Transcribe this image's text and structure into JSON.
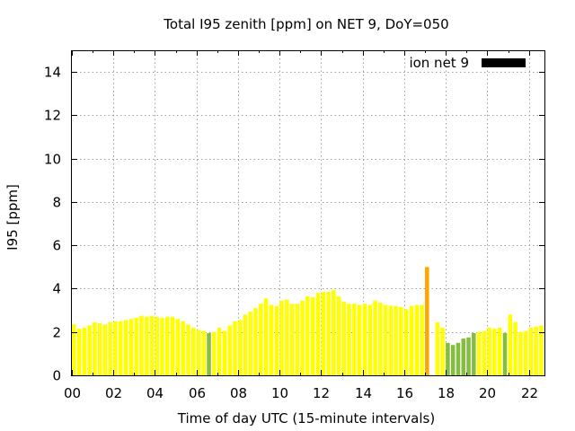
{
  "chart_data": {
    "type": "bar",
    "title": "Total I95 zenith [ppm] on NET 9, DoY=050",
    "xlabel": "Time of day UTC (15-minute intervals)",
    "ylabel": "I95 [ppm]",
    "xlim": [
      0,
      22.75
    ],
    "ylim": [
      0,
      15
    ],
    "xticks": [
      "00",
      "02",
      "04",
      "06",
      "08",
      "10",
      "12",
      "14",
      "16",
      "18",
      "20",
      "22"
    ],
    "yticks": [
      "0",
      "2",
      "4",
      "6",
      "8",
      "10",
      "12",
      "14"
    ],
    "grid": true,
    "legend": {
      "label": "ion net 9",
      "color": "#000000",
      "position": "top-right"
    },
    "colors": {
      "yellow": "#ffff00",
      "green": "#84bd3f",
      "orange": "#ffa500"
    },
    "bars": [
      {
        "x": 0.0,
        "y": 2.35,
        "c": "yellow"
      },
      {
        "x": 0.25,
        "y": 2.15,
        "c": "yellow"
      },
      {
        "x": 0.5,
        "y": 2.2,
        "c": "yellow"
      },
      {
        "x": 0.75,
        "y": 2.3,
        "c": "yellow"
      },
      {
        "x": 1.0,
        "y": 2.45,
        "c": "yellow"
      },
      {
        "x": 1.25,
        "y": 2.4,
        "c": "yellow"
      },
      {
        "x": 1.5,
        "y": 2.35,
        "c": "yellow"
      },
      {
        "x": 1.75,
        "y": 2.45,
        "c": "yellow"
      },
      {
        "x": 2.0,
        "y": 2.5,
        "c": "yellow"
      },
      {
        "x": 2.25,
        "y": 2.5,
        "c": "yellow"
      },
      {
        "x": 2.5,
        "y": 2.55,
        "c": "yellow"
      },
      {
        "x": 2.75,
        "y": 2.6,
        "c": "yellow"
      },
      {
        "x": 3.0,
        "y": 2.65,
        "c": "yellow"
      },
      {
        "x": 3.25,
        "y": 2.75,
        "c": "yellow"
      },
      {
        "x": 3.5,
        "y": 2.7,
        "c": "yellow"
      },
      {
        "x": 3.75,
        "y": 2.75,
        "c": "yellow"
      },
      {
        "x": 4.0,
        "y": 2.7,
        "c": "yellow"
      },
      {
        "x": 4.25,
        "y": 2.65,
        "c": "yellow"
      },
      {
        "x": 4.5,
        "y": 2.7,
        "c": "yellow"
      },
      {
        "x": 4.75,
        "y": 2.7,
        "c": "yellow"
      },
      {
        "x": 5.0,
        "y": 2.6,
        "c": "yellow"
      },
      {
        "x": 5.25,
        "y": 2.5,
        "c": "yellow"
      },
      {
        "x": 5.5,
        "y": 2.35,
        "c": "yellow"
      },
      {
        "x": 5.75,
        "y": 2.2,
        "c": "yellow"
      },
      {
        "x": 6.0,
        "y": 2.1,
        "c": "yellow"
      },
      {
        "x": 6.25,
        "y": 2.05,
        "c": "yellow"
      },
      {
        "x": 6.5,
        "y": 1.95,
        "c": "green"
      },
      {
        "x": 6.75,
        "y": 2.0,
        "c": "yellow"
      },
      {
        "x": 7.0,
        "y": 2.2,
        "c": "yellow"
      },
      {
        "x": 7.25,
        "y": 2.05,
        "c": "yellow"
      },
      {
        "x": 7.5,
        "y": 2.3,
        "c": "yellow"
      },
      {
        "x": 7.75,
        "y": 2.5,
        "c": "yellow"
      },
      {
        "x": 8.0,
        "y": 2.55,
        "c": "yellow"
      },
      {
        "x": 8.25,
        "y": 2.8,
        "c": "yellow"
      },
      {
        "x": 8.5,
        "y": 2.95,
        "c": "yellow"
      },
      {
        "x": 8.75,
        "y": 3.1,
        "c": "yellow"
      },
      {
        "x": 9.0,
        "y": 3.3,
        "c": "yellow"
      },
      {
        "x": 9.25,
        "y": 3.55,
        "c": "yellow"
      },
      {
        "x": 9.5,
        "y": 3.25,
        "c": "yellow"
      },
      {
        "x": 9.75,
        "y": 3.2,
        "c": "yellow"
      },
      {
        "x": 10.0,
        "y": 3.45,
        "c": "yellow"
      },
      {
        "x": 10.25,
        "y": 3.5,
        "c": "yellow"
      },
      {
        "x": 10.5,
        "y": 3.3,
        "c": "yellow"
      },
      {
        "x": 10.75,
        "y": 3.3,
        "c": "yellow"
      },
      {
        "x": 11.0,
        "y": 3.45,
        "c": "yellow"
      },
      {
        "x": 11.25,
        "y": 3.65,
        "c": "yellow"
      },
      {
        "x": 11.5,
        "y": 3.6,
        "c": "yellow"
      },
      {
        "x": 11.75,
        "y": 3.8,
        "c": "yellow"
      },
      {
        "x": 12.0,
        "y": 3.85,
        "c": "yellow"
      },
      {
        "x": 12.25,
        "y": 3.85,
        "c": "yellow"
      },
      {
        "x": 12.5,
        "y": 3.95,
        "c": "yellow"
      },
      {
        "x": 12.75,
        "y": 3.65,
        "c": "yellow"
      },
      {
        "x": 13.0,
        "y": 3.4,
        "c": "yellow"
      },
      {
        "x": 13.25,
        "y": 3.3,
        "c": "yellow"
      },
      {
        "x": 13.5,
        "y": 3.3,
        "c": "yellow"
      },
      {
        "x": 13.75,
        "y": 3.25,
        "c": "yellow"
      },
      {
        "x": 14.0,
        "y": 3.3,
        "c": "yellow"
      },
      {
        "x": 14.25,
        "y": 3.25,
        "c": "yellow"
      },
      {
        "x": 14.5,
        "y": 3.45,
        "c": "yellow"
      },
      {
        "x": 14.75,
        "y": 3.35,
        "c": "yellow"
      },
      {
        "x": 15.0,
        "y": 3.25,
        "c": "yellow"
      },
      {
        "x": 15.25,
        "y": 3.2,
        "c": "yellow"
      },
      {
        "x": 15.5,
        "y": 3.2,
        "c": "yellow"
      },
      {
        "x": 15.75,
        "y": 3.15,
        "c": "yellow"
      },
      {
        "x": 16.0,
        "y": 3.05,
        "c": "yellow"
      },
      {
        "x": 16.25,
        "y": 3.2,
        "c": "yellow"
      },
      {
        "x": 16.5,
        "y": 3.25,
        "c": "yellow"
      },
      {
        "x": 16.75,
        "y": 3.25,
        "c": "yellow"
      },
      {
        "x": 17.0,
        "y": 5.0,
        "c": "orange"
      },
      {
        "x": 17.5,
        "y": 2.45,
        "c": "yellow"
      },
      {
        "x": 17.75,
        "y": 2.2,
        "c": "yellow"
      },
      {
        "x": 18.0,
        "y": 1.5,
        "c": "green"
      },
      {
        "x": 18.25,
        "y": 1.4,
        "c": "green"
      },
      {
        "x": 18.5,
        "y": 1.5,
        "c": "green"
      },
      {
        "x": 18.75,
        "y": 1.7,
        "c": "green"
      },
      {
        "x": 19.0,
        "y": 1.75,
        "c": "green"
      },
      {
        "x": 19.25,
        "y": 1.95,
        "c": "green"
      },
      {
        "x": 19.5,
        "y": 2.0,
        "c": "yellow"
      },
      {
        "x": 19.75,
        "y": 2.05,
        "c": "yellow"
      },
      {
        "x": 20.0,
        "y": 2.2,
        "c": "yellow"
      },
      {
        "x": 20.25,
        "y": 2.15,
        "c": "yellow"
      },
      {
        "x": 20.5,
        "y": 2.2,
        "c": "yellow"
      },
      {
        "x": 20.75,
        "y": 1.95,
        "c": "green"
      },
      {
        "x": 21.0,
        "y": 2.8,
        "c": "yellow"
      },
      {
        "x": 21.25,
        "y": 2.45,
        "c": "yellow"
      },
      {
        "x": 21.5,
        "y": 2.0,
        "c": "yellow"
      },
      {
        "x": 21.75,
        "y": 2.05,
        "c": "yellow"
      },
      {
        "x": 22.0,
        "y": 2.2,
        "c": "yellow"
      },
      {
        "x": 22.25,
        "y": 2.25,
        "c": "yellow"
      },
      {
        "x": 22.5,
        "y": 2.3,
        "c": "yellow"
      }
    ]
  }
}
